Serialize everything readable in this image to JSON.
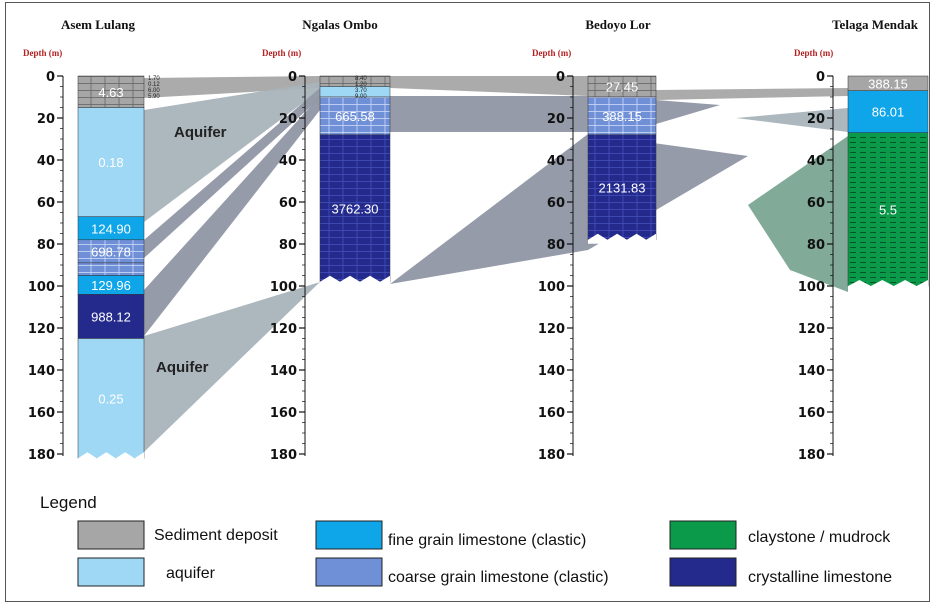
{
  "wells": [
    {
      "name": "Asem Lulang",
      "depth_label": "Depth (m)",
      "ticks": [
        "0",
        "20",
        "40",
        "60",
        "80",
        "100",
        "120",
        "140",
        "160",
        "180"
      ],
      "layers": [
        {
          "label": "4.63",
          "top_m": 0,
          "bottom_m": 15,
          "type": "sediment",
          "hatch": true
        },
        {
          "label": "0.18",
          "top_m": 15,
          "bottom_m": 67,
          "type": "aquifer"
        },
        {
          "label": "124.90",
          "top_m": 67,
          "bottom_m": 78,
          "type": "fine"
        },
        {
          "label": "698.78",
          "top_m": 78,
          "bottom_m": 89,
          "type": "coarse",
          "hatch": true
        },
        {
          "label": "",
          "top_m": 89,
          "bottom_m": 95,
          "type": "coarse",
          "hatch": true
        },
        {
          "label": "129.96",
          "top_m": 95,
          "bottom_m": 104,
          "type": "fine"
        },
        {
          "label": "988.12",
          "top_m": 104,
          "bottom_m": 125,
          "type": "crystalline"
        },
        {
          "label": "0.25",
          "top_m": 125,
          "bottom_m": 182,
          "type": "aquifer"
        }
      ],
      "minor_labels": [
        "1.70",
        "0.12",
        "6.00",
        "5.90"
      ]
    },
    {
      "name": "Ngalas Ombo",
      "depth_label": "Depth (m)",
      "ticks": [
        "0",
        "20",
        "40",
        "60",
        "80",
        "100",
        "120",
        "140",
        "160",
        "180"
      ],
      "layers": [
        {
          "label": "",
          "top_m": 0,
          "bottom_m": 5,
          "type": "sediment",
          "hatch": true
        },
        {
          "label": "",
          "top_m": 5,
          "bottom_m": 10,
          "type": "aquifer"
        },
        {
          "label": "665.58",
          "top_m": 10,
          "bottom_m": 28,
          "type": "coarse",
          "hatch": true
        },
        {
          "label": "3762.30",
          "top_m": 28,
          "bottom_m": 98,
          "type": "crystalline",
          "hatch": true
        }
      ],
      "minor_labels": [
        "8.40",
        "1.20",
        "3.70",
        "9.00"
      ]
    },
    {
      "name": "Bedoyo Lor",
      "depth_label": "Depth (m)",
      "ticks": [
        "0",
        "20",
        "40",
        "60",
        "80",
        "100",
        "120",
        "140",
        "160",
        "180"
      ],
      "layers": [
        {
          "label": "27.45",
          "top_m": 0,
          "bottom_m": 10,
          "type": "sediment",
          "hatch": true
        },
        {
          "label": "388.15",
          "top_m": 10,
          "bottom_m": 28,
          "type": "coarse",
          "hatch": true
        },
        {
          "label": "2131.83",
          "top_m": 28,
          "bottom_m": 78,
          "type": "crystalline",
          "hatch": true
        }
      ],
      "minor_labels": []
    },
    {
      "name": "Telaga Mendak",
      "depth_label": "Depth (m)",
      "ticks": [
        "0",
        "20",
        "40",
        "60",
        "80",
        "100",
        "120",
        "140",
        "160",
        "180"
      ],
      "layers": [
        {
          "label": "388.15",
          "top_m": 0,
          "bottom_m": 7,
          "type": "sediment"
        },
        {
          "label": "86.01",
          "top_m": 7,
          "bottom_m": 27,
          "type": "fine"
        },
        {
          "label": "5.5",
          "top_m": 27,
          "bottom_m": 100,
          "type": "clay",
          "hatch": true
        }
      ],
      "minor_labels": []
    }
  ],
  "aquifer_labels": [
    "Aquifer",
    "Aquifer"
  ],
  "legend": {
    "title": "Legend",
    "items": [
      {
        "key": "sediment",
        "label": "Sediment deposit",
        "color": "#a6a6a6"
      },
      {
        "key": "fine",
        "label": "fine grain limestone (clastic)",
        "color": "#0ea5e9"
      },
      {
        "key": "clay",
        "label": "claystone / mudrock",
        "color": "#0a9a4a"
      },
      {
        "key": "aquifer",
        "label": "aquifer",
        "color": "#9fd8f5"
      },
      {
        "key": "coarse",
        "label": "coarse grain limestone (clastic)",
        "color": "#6f8fd6"
      },
      {
        "key": "crystalline",
        "label": "crystalline limestone",
        "color": "#232a8c"
      }
    ]
  },
  "colors": {
    "sediment": "#a6a6a6",
    "aquifer": "#9fd8f5",
    "fine": "#0ea5e9",
    "coarse": "#6f8fd6",
    "crystalline": "#232a8c",
    "clay": "#0a9a4a",
    "correlation": "#9096a4",
    "aquifer_band": "#a9b4bb",
    "clay_band": "#7aa594"
  }
}
